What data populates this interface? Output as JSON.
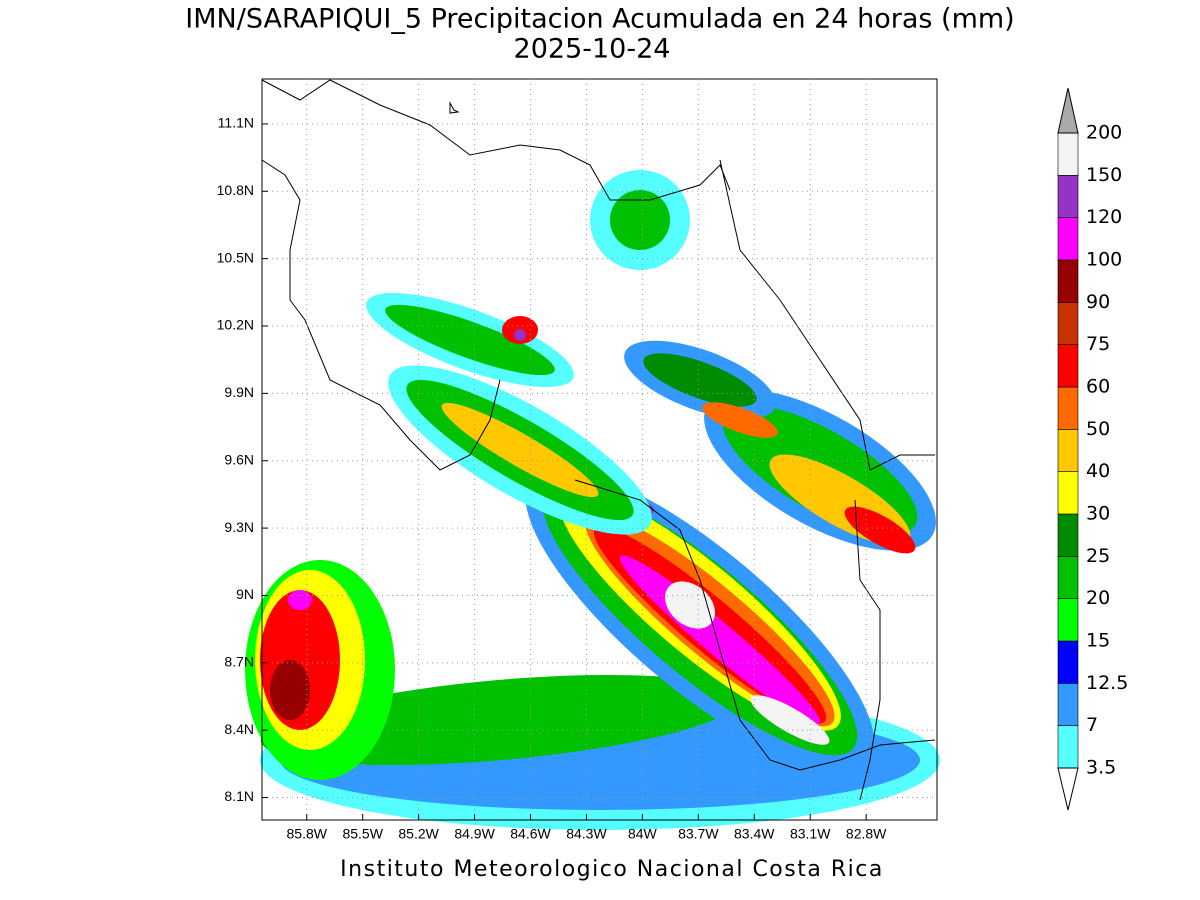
{
  "map": {
    "title": [
      "IMN/SARAPIQUI_5 Precipitacion Acumulada en 24 horas (mm)",
      "2025-10-24"
    ],
    "xlim": [
      -86.04,
      -82.42
    ],
    "ylim": [
      8.0,
      11.3
    ],
    "lon_ticks": [
      {
        "value": -85.8,
        "label": "85.8W"
      },
      {
        "value": -85.5,
        "label": "85.5W"
      },
      {
        "value": -85.2,
        "label": "85.2W"
      },
      {
        "value": -84.9,
        "label": "84.9W"
      },
      {
        "value": -84.6,
        "label": "84.6W"
      },
      {
        "value": -84.3,
        "label": "84.3W"
      },
      {
        "value": -84.0,
        "label": "84W"
      },
      {
        "value": -83.7,
        "label": "83.7W"
      },
      {
        "value": -83.4,
        "label": "83.4W"
      },
      {
        "value": -83.1,
        "label": "83.1W"
      },
      {
        "value": -82.8,
        "label": "82.8W"
      }
    ],
    "lat_ticks": [
      {
        "value": 8.1,
        "label": "8.1N"
      },
      {
        "value": 8.4,
        "label": "8.4N"
      },
      {
        "value": 8.7,
        "label": "8.7N"
      },
      {
        "value": 9.0,
        "label": "9N"
      },
      {
        "value": 9.3,
        "label": "9.3N"
      },
      {
        "value": 9.6,
        "label": "9.6N"
      },
      {
        "value": 9.9,
        "label": "9.9N"
      },
      {
        "value": 10.2,
        "label": "10.2N"
      },
      {
        "value": 10.5,
        "label": "10.5N"
      },
      {
        "value": 10.8,
        "label": "10.8N"
      },
      {
        "value": 11.1,
        "label": "11.1N"
      }
    ],
    "colorbar": {
      "levels": [
        3.5,
        7,
        12.5,
        15,
        20,
        25,
        30,
        40,
        50,
        60,
        75,
        90,
        100,
        120,
        150,
        200
      ],
      "colors": [
        "#55ffff",
        "#3399ff",
        "#0000ff",
        "#00ff00",
        "#00c000",
        "#008c00",
        "#ffff00",
        "#ffc800",
        "#ff6a00",
        "#ff0000",
        "#c83200",
        "#960000",
        "#ff00ff",
        "#9632c8",
        "#f4f4f4"
      ],
      "under_color": "#ffffff",
      "over_color": "#aaaaaa"
    },
    "footer": "Instituto Meteorologico Nacional Costa Rica"
  }
}
